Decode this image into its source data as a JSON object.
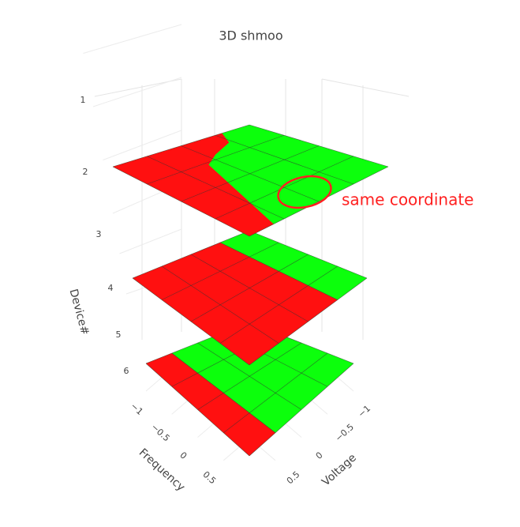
{
  "chart_data": {
    "type": "surface3d",
    "title": "3D shmoo",
    "xlabel": "Frequency",
    "ylabel": "Voltage",
    "zlabel": "Device#",
    "xlim": [
      -1,
      1
    ],
    "ylim": [
      -1,
      1
    ],
    "zlim": [
      1,
      6
    ],
    "xticks": [
      {
        "value": -1,
        "label": "−1"
      },
      {
        "value": -0.5,
        "label": "−0.5"
      },
      0,
      0.5
    ],
    "yticks": [
      {
        "value": -1,
        "label": "−1"
      },
      {
        "value": -0.5,
        "label": "−0.5"
      },
      0,
      0.5
    ],
    "zticks": [
      1,
      2,
      3,
      4,
      5,
      6
    ],
    "layers": [
      1,
      3,
      5
    ],
    "pass_color": "#0cff0c",
    "fail_color": "#ff1010",
    "annotation": "same coordinate"
  }
}
